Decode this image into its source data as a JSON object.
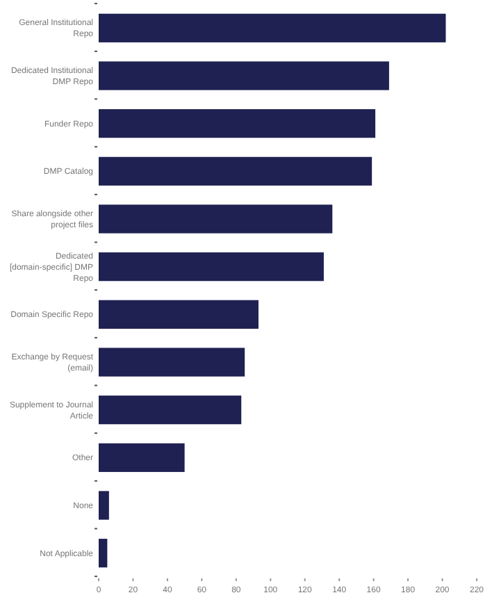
{
  "chart_data": {
    "type": "bar",
    "orientation": "horizontal",
    "categories": [
      "General Institutional Repo",
      "Dedicated Institutional DMP Repo",
      "Funder Repo",
      "DMP Catalog",
      "Share alongside other project files",
      "Dedicated [domain-specific] DMP Repo",
      "Domain Specific Repo",
      "Exchange by Request (email)",
      "Supplement to Journal Article",
      "Other",
      "None",
      "Not Applicable"
    ],
    "values": [
      202,
      169,
      161,
      159,
      136,
      131,
      93,
      85,
      83,
      50,
      6,
      5
    ],
    "color": "#1f2152",
    "xlim": [
      0,
      220
    ],
    "xticks": [
      0,
      20,
      40,
      60,
      80,
      100,
      120,
      140,
      160,
      180,
      200,
      220
    ],
    "grid": false
  }
}
